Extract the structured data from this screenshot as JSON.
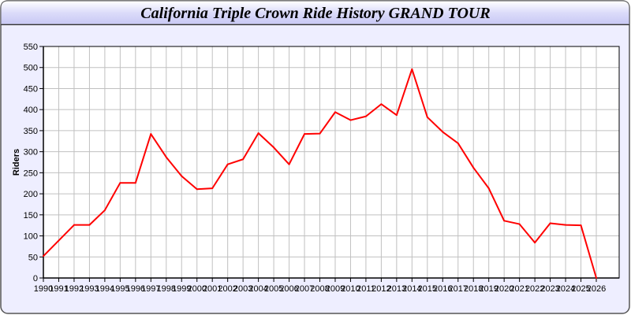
{
  "chart_data": {
    "type": "line",
    "title": "California Triple Crown Ride History GRAND TOUR",
    "xlabel": "",
    "ylabel": "Riders",
    "ylim": [
      0,
      550
    ],
    "yticks": [
      0,
      50,
      100,
      150,
      200,
      250,
      300,
      350,
      400,
      450,
      500,
      550
    ],
    "grid": true,
    "colors": {
      "line": "#ff0000",
      "background": "#eeeeff",
      "plot": "#ffffff",
      "grid": "#c0c0c0"
    },
    "categories": [
      "1990",
      "1991",
      "1992",
      "1993",
      "1994",
      "1995",
      "1996",
      "1997",
      "1998",
      "1999",
      "2000",
      "2001",
      "2002",
      "2003",
      "2004",
      "2005",
      "2006",
      "2007",
      "2008",
      "2009",
      "2010",
      "2011",
      "2012",
      "2013",
      "2014",
      "2015",
      "2016",
      "2017",
      "2018",
      "2019",
      "2020",
      "2021",
      "2022",
      "2023",
      "2024",
      "2025",
      "2026"
    ],
    "series": [
      {
        "values": [
          52,
          89,
          126,
          126,
          161,
          226,
          226,
          342,
          287,
          242,
          211,
          213,
          270,
          282,
          344,
          310,
          270,
          342,
          343,
          394,
          375,
          384,
          413,
          387,
          496,
          382,
          347,
          320,
          262,
          213,
          136,
          128,
          84,
          130,
          126,
          125,
          0
        ]
      }
    ]
  }
}
